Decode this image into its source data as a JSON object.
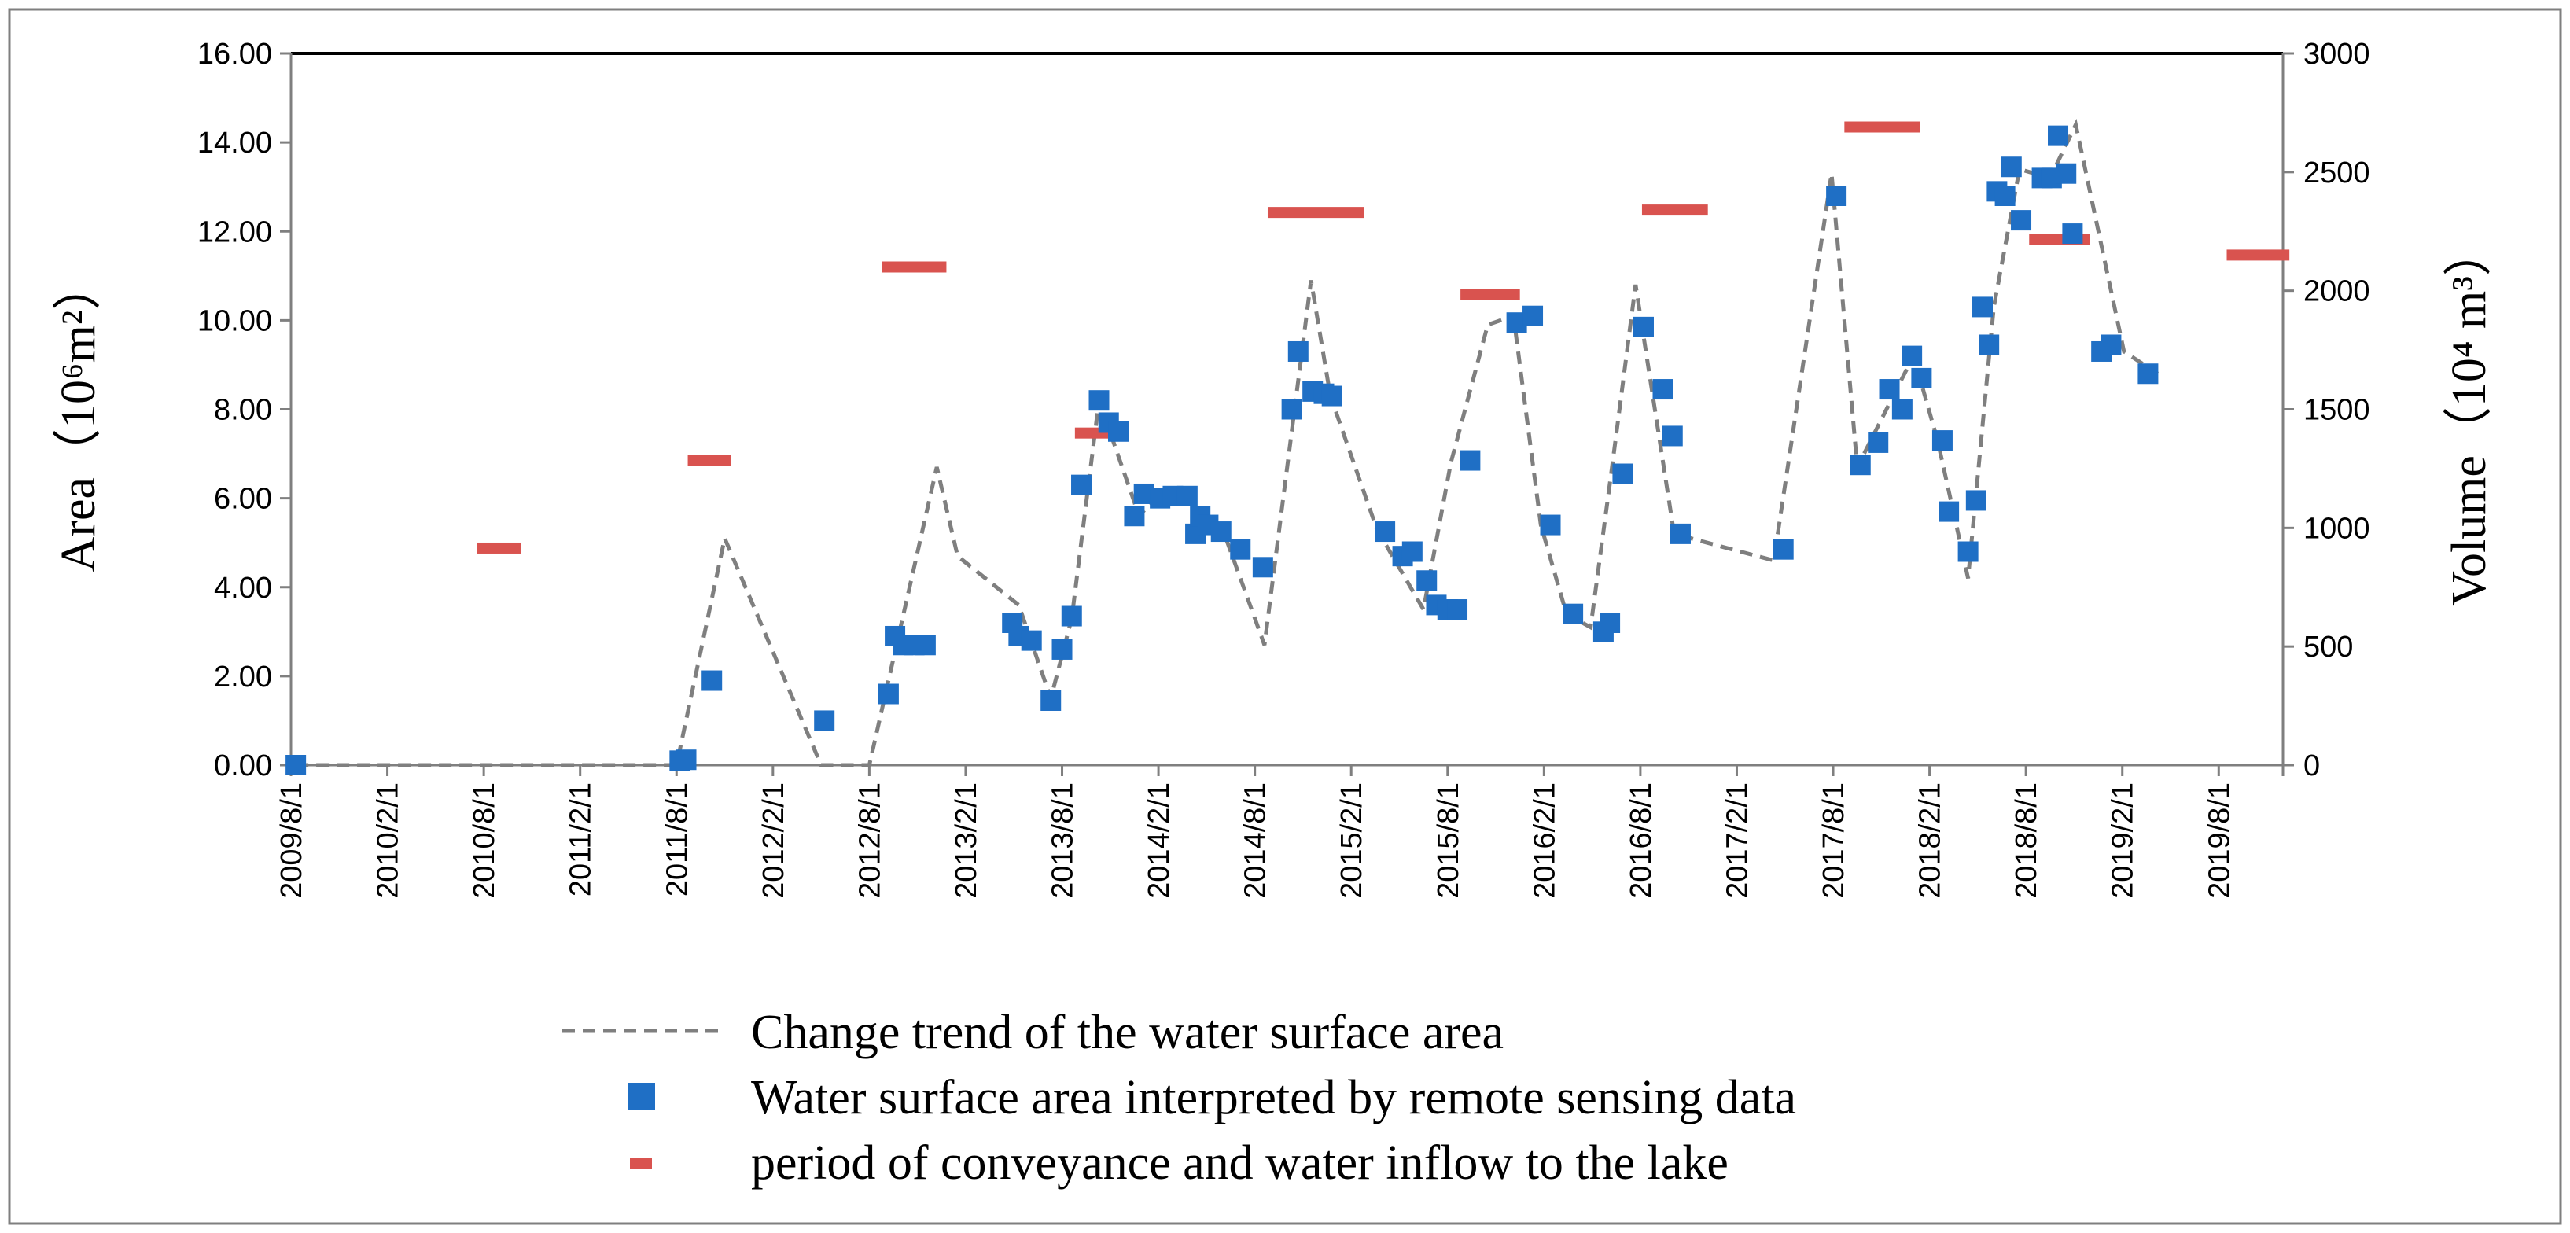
{
  "chart_data": {
    "type": "scatter",
    "title": "",
    "ylabel_left": "Area（10⁶m²）",
    "ylabel_right": "Volume（10⁴ m³）",
    "xlabel": "",
    "ylim_left": [
      0,
      16
    ],
    "ylim_right": [
      0,
      3000
    ],
    "yticks_left": [
      "0.00",
      "2.00",
      "4.00",
      "6.00",
      "8.00",
      "10.00",
      "12.00",
      "14.00",
      "16.00"
    ],
    "yticks_right": [
      "0",
      "500",
      "1000",
      "1500",
      "2000",
      "2500",
      "3000"
    ],
    "xticks": [
      "2009/8/1",
      "2010/2/1",
      "2010/8/1",
      "2011/2/1",
      "2011/8/1",
      "2012/2/1",
      "2012/8/1",
      "2013/2/1",
      "2013/8/1",
      "2014/2/1",
      "2014/8/1",
      "2015/2/1",
      "2015/8/1",
      "2016/2/1",
      "2016/8/1",
      "2017/2/1",
      "2017/8/1",
      "2018/2/1",
      "2018/8/1",
      "2019/2/1",
      "2019/8/1"
    ],
    "xlim_months": [
      0,
      124
    ],
    "legend_position": "bottom",
    "series": [
      {
        "name": "Change trend of the water surface area",
        "style": "dashed-line",
        "color": "#7f7f7f",
        "axis": "left",
        "points": [
          [
            0.3,
            0
          ],
          [
            24,
            0
          ],
          [
            27,
            5.1
          ],
          [
            33,
            0
          ],
          [
            36,
            0
          ],
          [
            40.2,
            6.7
          ],
          [
            41.5,
            4.7
          ],
          [
            45.3,
            3.6
          ],
          [
            47.3,
            1.5
          ],
          [
            48.6,
            3.3
          ],
          [
            50.3,
            8.2
          ],
          [
            52.8,
            5.6
          ],
          [
            54,
            6.1
          ],
          [
            56,
            6.0
          ],
          [
            58,
            5.3
          ],
          [
            60.6,
            2.7
          ],
          [
            63.5,
            10.9
          ],
          [
            64.7,
            8.3
          ],
          [
            67.6,
            5.3
          ],
          [
            70.5,
            3.5
          ],
          [
            72.2,
            6.8
          ],
          [
            74.5,
            9.9
          ],
          [
            76.1,
            10.1
          ],
          [
            77.8,
            5.4
          ],
          [
            79.4,
            3.4
          ],
          [
            80.9,
            3.1
          ],
          [
            82.2,
            6.6
          ],
          [
            83.7,
            10.8
          ],
          [
            86.1,
            5.2
          ],
          [
            92.3,
            4.6
          ],
          [
            95.9,
            13.3
          ],
          [
            97.5,
            6.7
          ],
          [
            101,
            9.2
          ],
          [
            102.5,
            7.3
          ],
          [
            104.4,
            4.2
          ],
          [
            106,
            10.3
          ],
          [
            107.6,
            13.4
          ],
          [
            109.5,
            13.2
          ],
          [
            111.1,
            14.4
          ],
          [
            114.1,
            9.3
          ],
          [
            116.2,
            8.8
          ]
        ]
      },
      {
        "name": "Water surface area interpreted by remote sensing data",
        "style": "square-marker",
        "color": "#1f6fc5",
        "axis": "left",
        "points": [
          [
            0.3,
            0
          ],
          [
            24.2,
            0.1
          ],
          [
            24.6,
            0.12
          ],
          [
            26.2,
            1.9
          ],
          [
            33.2,
            1.0
          ],
          [
            37.2,
            1.6
          ],
          [
            37.6,
            2.9
          ],
          [
            38.1,
            2.7
          ],
          [
            38.8,
            2.7
          ],
          [
            39.5,
            2.7
          ],
          [
            44.9,
            3.2
          ],
          [
            45.3,
            2.9
          ],
          [
            46.1,
            2.8
          ],
          [
            47.3,
            1.45
          ],
          [
            48,
            2.6
          ],
          [
            48.6,
            3.35
          ],
          [
            49.2,
            6.3
          ],
          [
            50.3,
            8.2
          ],
          [
            50.9,
            7.7
          ],
          [
            51.5,
            7.5
          ],
          [
            52.5,
            5.6
          ],
          [
            53.1,
            6.1
          ],
          [
            54.1,
            6.0
          ],
          [
            54.9,
            6.05
          ],
          [
            55.8,
            6.05
          ],
          [
            56.3,
            5.2
          ],
          [
            56.6,
            5.6
          ],
          [
            57.1,
            5.4
          ],
          [
            57.9,
            5.25
          ],
          [
            59.1,
            4.85
          ],
          [
            60.5,
            4.45
          ],
          [
            62.3,
            8.0
          ],
          [
            62.7,
            9.3
          ],
          [
            63.6,
            8.4
          ],
          [
            64.3,
            8.35
          ],
          [
            64.8,
            8.3
          ],
          [
            68.1,
            5.25
          ],
          [
            69.2,
            4.7
          ],
          [
            69.8,
            4.8
          ],
          [
            70.7,
            4.15
          ],
          [
            71.3,
            3.6
          ],
          [
            72,
            3.5
          ],
          [
            72.6,
            3.5
          ],
          [
            73.4,
            6.85
          ],
          [
            76.3,
            9.95
          ],
          [
            77.3,
            10.1
          ],
          [
            78.4,
            5.4
          ],
          [
            79.8,
            3.4
          ],
          [
            81.7,
            3.0
          ],
          [
            82.1,
            3.2
          ],
          [
            82.9,
            6.55
          ],
          [
            84.2,
            9.85
          ],
          [
            85.4,
            8.45
          ],
          [
            86,
            7.4
          ],
          [
            86.5,
            5.2
          ],
          [
            92.9,
            4.85
          ],
          [
            96.2,
            12.8
          ],
          [
            97.7,
            6.75
          ],
          [
            98.8,
            7.25
          ],
          [
            99.5,
            8.45
          ],
          [
            100.3,
            8.0
          ],
          [
            100.9,
            9.2
          ],
          [
            101.5,
            8.7
          ],
          [
            102.8,
            7.3
          ],
          [
            103.2,
            5.7
          ],
          [
            104.4,
            4.8
          ],
          [
            104.9,
            5.95
          ],
          [
            105.3,
            10.3
          ],
          [
            105.7,
            9.45
          ],
          [
            106.2,
            12.9
          ],
          [
            106.7,
            12.8
          ],
          [
            107.1,
            13.45
          ],
          [
            107.7,
            12.25
          ],
          [
            109,
            13.2
          ],
          [
            109.6,
            13.2
          ],
          [
            110,
            14.15
          ],
          [
            110.5,
            13.3
          ],
          [
            110.9,
            11.95
          ],
          [
            112.7,
            9.3
          ],
          [
            113.3,
            9.45
          ],
          [
            115.6,
            8.8
          ]
        ]
      },
      {
        "name": "period of conveyance and water inflow to the lake",
        "style": "horizontal-bar",
        "color": "#d9534f",
        "axis": "right",
        "segments": [
          [
            11.6,
            14.3,
            915
          ],
          [
            24.7,
            27.4,
            1285
          ],
          [
            36.8,
            40.8,
            2100
          ],
          [
            48.8,
            52.0,
            1400
          ],
          [
            60.8,
            66.8,
            2330
          ],
          [
            72.8,
            76.5,
            1985
          ],
          [
            84.1,
            88.2,
            2340
          ],
          [
            96.7,
            101.4,
            2690
          ],
          [
            108.2,
            112.0,
            2215
          ],
          [
            120.5,
            124.4,
            2150
          ]
        ]
      }
    ]
  }
}
